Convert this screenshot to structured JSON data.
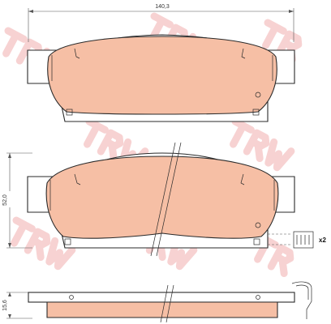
{
  "drawing": {
    "dimensions": {
      "width": "140,3",
      "height": "52,0",
      "thickness": "15,6"
    },
    "quantity_label": "x2",
    "watermark_text": "TRW",
    "colors": {
      "pad_fill": "#f6bfa5",
      "outline": "#2a2a2a",
      "watermark": "#f7d2d2",
      "background": "#ffffff"
    }
  }
}
